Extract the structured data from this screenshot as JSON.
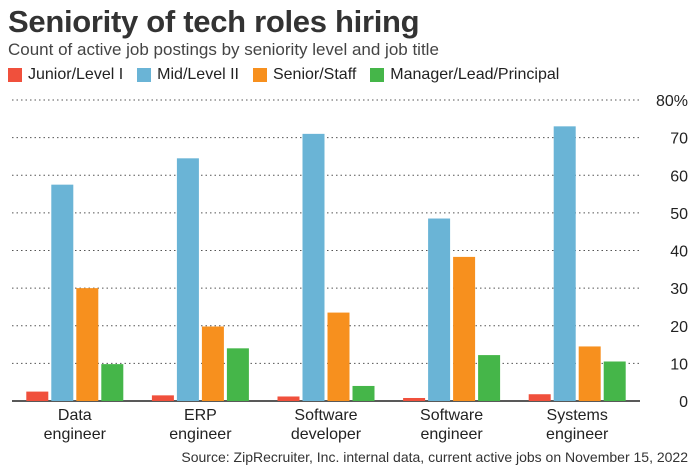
{
  "chart_data": {
    "type": "bar",
    "title": "Seniority of tech roles hiring",
    "subtitle": "Count of active job postings by seniority level and job title",
    "categories": [
      [
        "Data",
        "engineer"
      ],
      [
        "ERP",
        "engineer"
      ],
      [
        "Software",
        "developer"
      ],
      [
        "Software",
        "engineer"
      ],
      [
        "Systems",
        "engineer"
      ]
    ],
    "series": [
      {
        "name": "Junior/Level I",
        "color": "#f0503c",
        "values": [
          2.5,
          1.5,
          1.2,
          0.8,
          1.8
        ]
      },
      {
        "name": "Mid/Level II",
        "color": "#6ab4d6",
        "values": [
          57.5,
          64.5,
          71,
          48.5,
          73
        ]
      },
      {
        "name": "Senior/Staff",
        "color": "#f7901e",
        "values": [
          30,
          19.8,
          23.5,
          38.3,
          14.5
        ]
      },
      {
        "name": "Manager/Lead/Principal",
        "color": "#45b649",
        "values": [
          9.8,
          14,
          4,
          12.2,
          10.5
        ]
      }
    ],
    "yticks": [
      "0",
      "10",
      "20",
      "30",
      "40",
      "50",
      "60",
      "70",
      "80%"
    ],
    "ylim": [
      0,
      80
    ],
    "grid": true,
    "legend_position": "top-left",
    "source": "Source: ZipRecruiter, Inc. internal data, current active jobs on November 15, 2022"
  }
}
